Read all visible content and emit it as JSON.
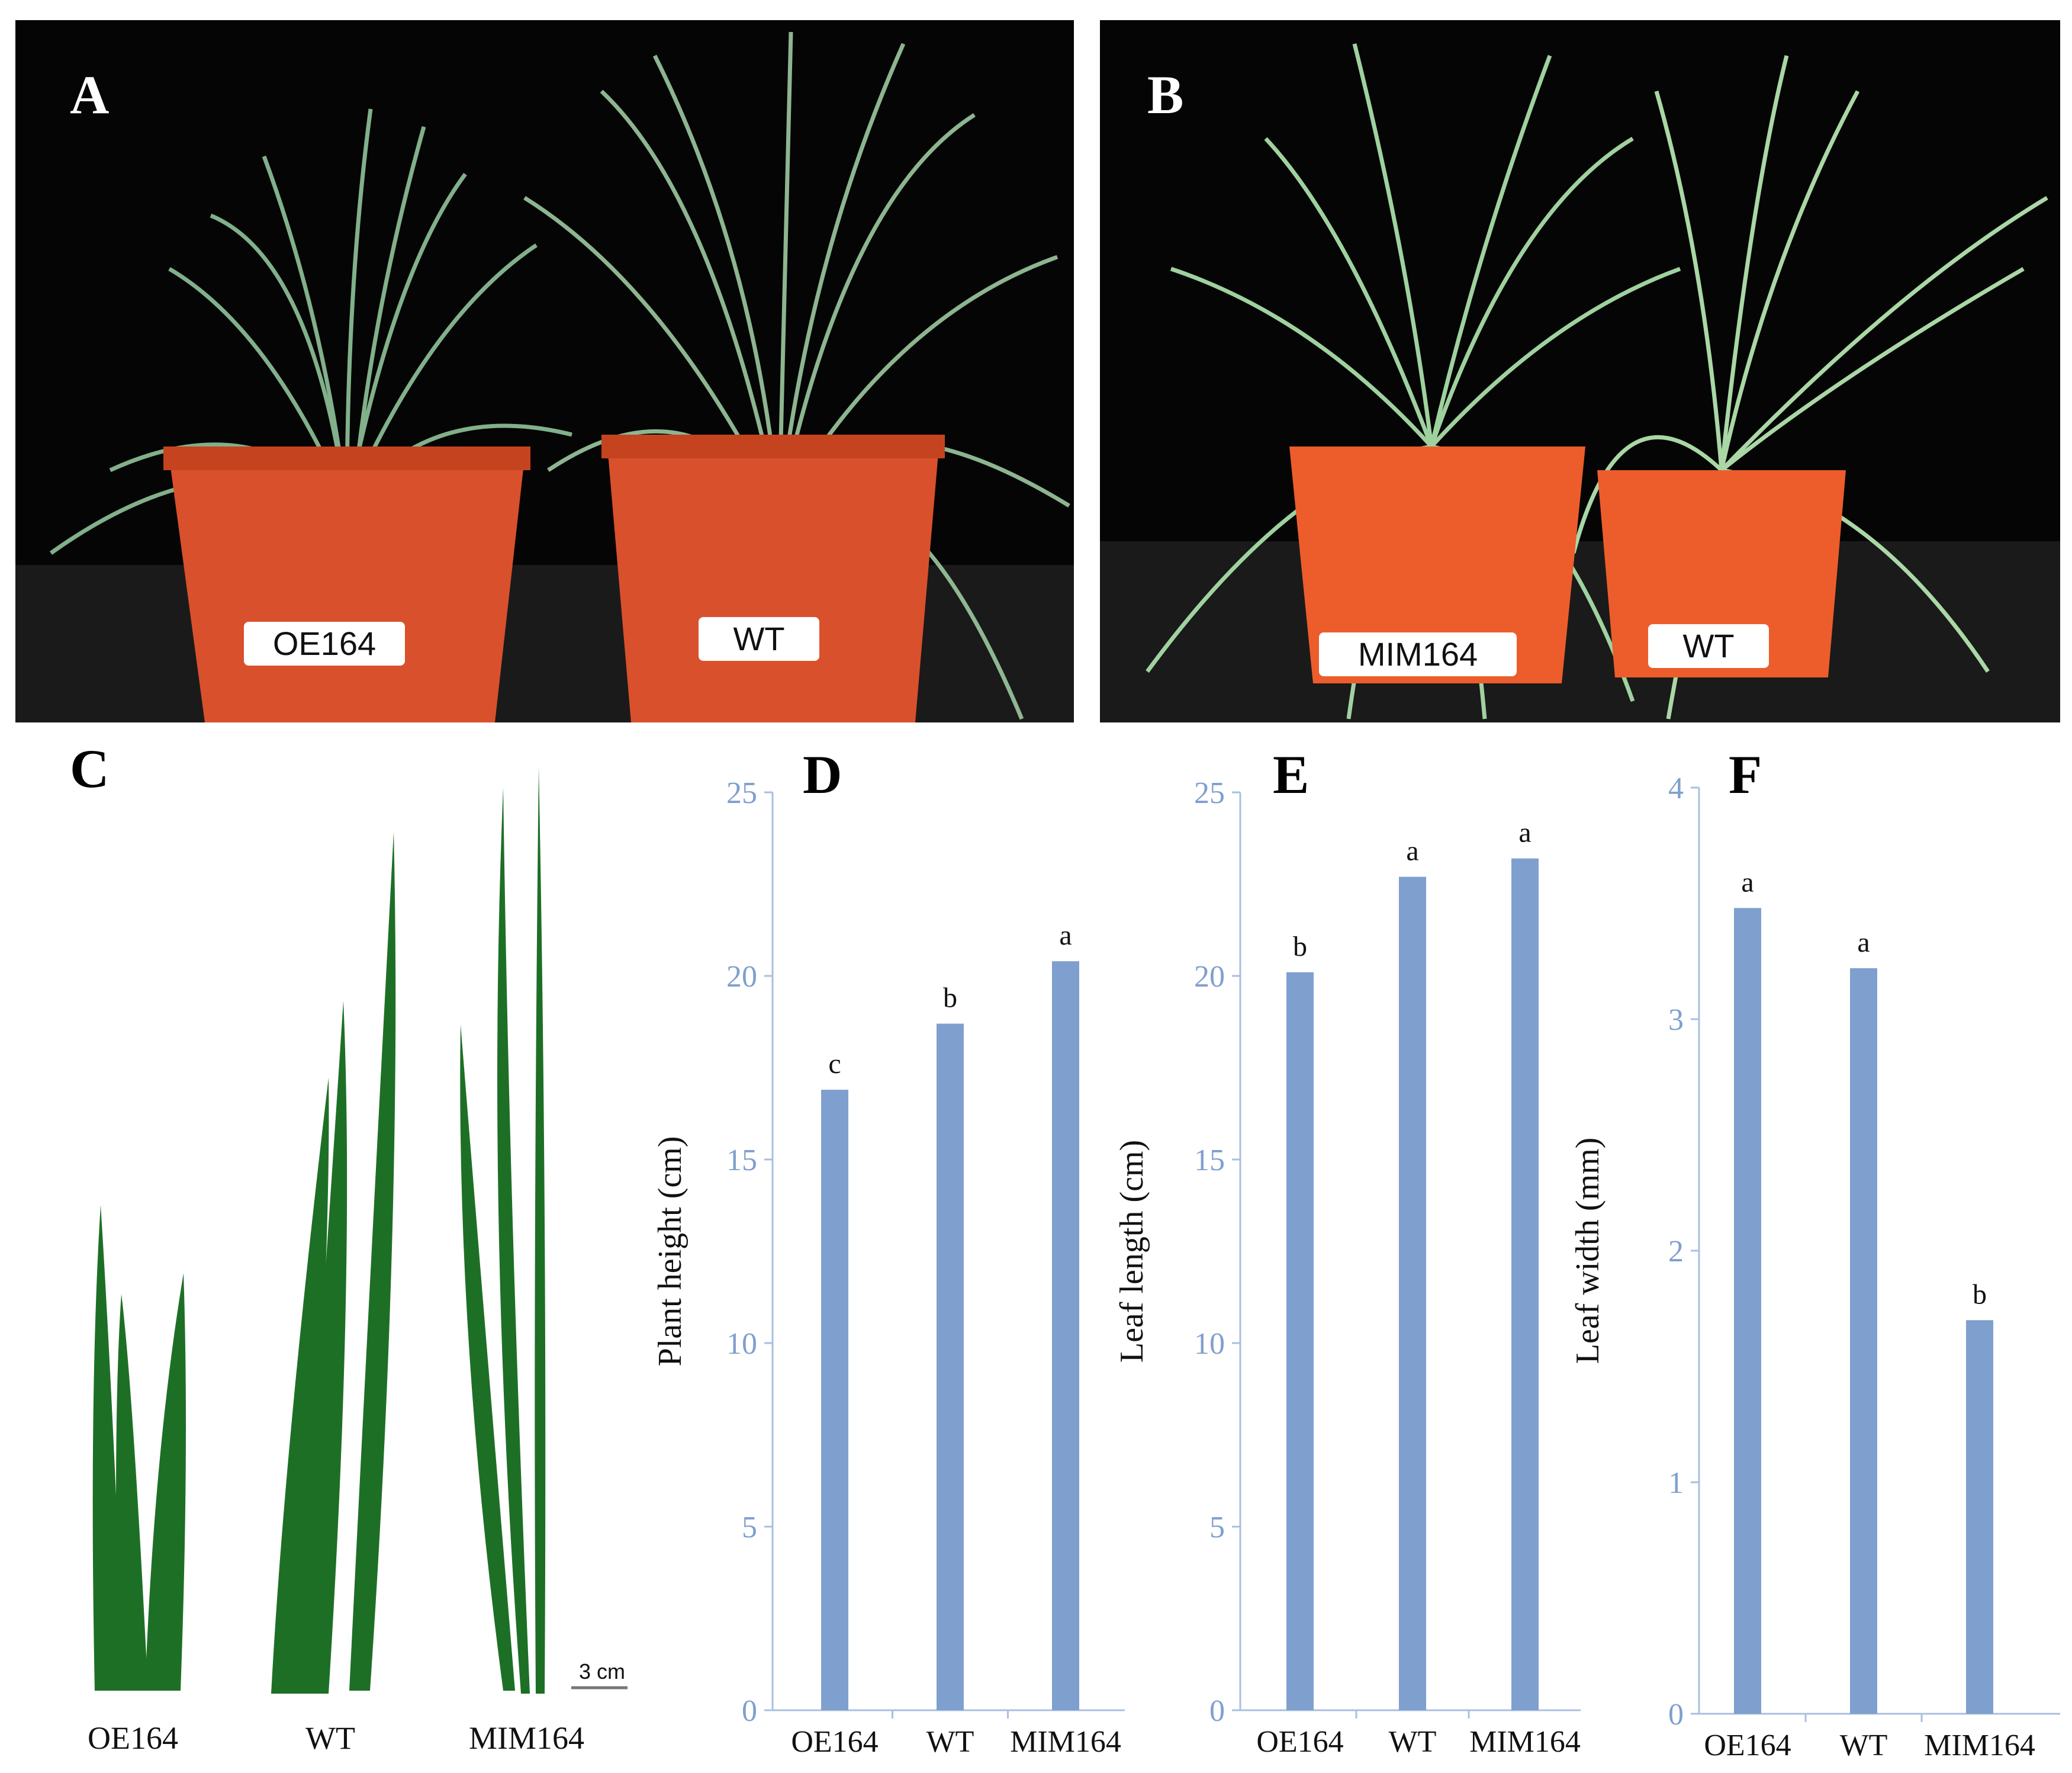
{
  "panels": {
    "A": {
      "letter": "A",
      "labels": [
        "OE164",
        "WT"
      ]
    },
    "B": {
      "letter": "B",
      "labels": [
        "MIM164",
        "WT"
      ]
    },
    "C": {
      "letter": "C",
      "leaf_labels": [
        "OE164",
        "WT",
        "MIM164"
      ],
      "scale_bar": "3 cm"
    },
    "D": {
      "letter": "D"
    },
    "E": {
      "letter": "E"
    },
    "F": {
      "letter": "F"
    }
  },
  "colors": {
    "bar": "#7f9fcf",
    "axis": "#a9bfe0",
    "tick_text": "#7f9fcf",
    "pot": "#d9502c",
    "leaf": "#1e6f26",
    "leaf_light": "#9fd6a6"
  },
  "chart_data": [
    {
      "type": "bar",
      "panel": "D",
      "categories": [
        "OE164",
        "WT",
        "MIM164"
      ],
      "values": [
        16.9,
        18.7,
        20.4
      ],
      "annotations": [
        "c",
        "b",
        "a"
      ],
      "ylabel": "Plant height (cm)",
      "ylim": [
        0,
        25
      ],
      "yticks": [
        0,
        5,
        10,
        15,
        20,
        25
      ],
      "grid": false
    },
    {
      "type": "bar",
      "panel": "E",
      "categories": [
        "OE164",
        "WT",
        "MIM164"
      ],
      "values": [
        20.1,
        22.7,
        23.2
      ],
      "annotations": [
        "b",
        "a",
        "a"
      ],
      "ylabel": "Leaf length (cm)",
      "ylim": [
        0,
        25
      ],
      "yticks": [
        0,
        5,
        10,
        15,
        20,
        25
      ],
      "grid": false
    },
    {
      "type": "bar",
      "panel": "F",
      "categories": [
        "OE164",
        "WT",
        "MIM164"
      ],
      "values": [
        3.48,
        3.22,
        1.7
      ],
      "annotations": [
        "a",
        "a",
        "b"
      ],
      "ylabel": "Leaf width (mm)",
      "ylim": [
        0,
        4
      ],
      "yticks": [
        0,
        1,
        2,
        3,
        4
      ],
      "grid": false
    }
  ]
}
